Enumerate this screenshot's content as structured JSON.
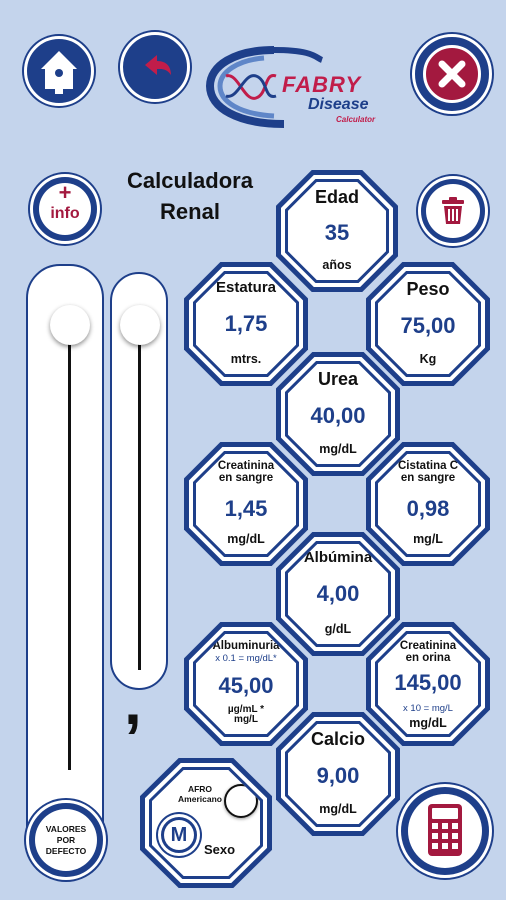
{
  "header": {
    "logo_text_1": "FABRY",
    "logo_text_2": "Disease",
    "logo_text_3": "Calculator"
  },
  "title": {
    "line1": "Calculadora",
    "line2": "Renal"
  },
  "info_button": {
    "plus": "+",
    "label": "info"
  },
  "comma_label": ",",
  "defaults_button": {
    "label": "VALORES POR DEFECTO"
  },
  "sex": {
    "afro_label": "AFRO Americano",
    "selected": "M",
    "label": "Sexo"
  },
  "fields": {
    "edad": {
      "label": "Edad",
      "value": "35",
      "unit": "años"
    },
    "estatura": {
      "label": "Estatura",
      "value": "1,75",
      "unit": "mtrs."
    },
    "peso": {
      "label": "Peso",
      "value": "75,00",
      "unit": "Kg"
    },
    "urea": {
      "label": "Urea",
      "value": "40,00",
      "unit": "mg/dL"
    },
    "creat_sangre": {
      "label": "Creatinina en sangre",
      "value": "1,45",
      "unit": "mg/dL"
    },
    "cistatina": {
      "label": "Cistatina C en sangre",
      "value": "0,98",
      "unit": "mg/L"
    },
    "albumina": {
      "label": "Albúmina",
      "value": "4,00",
      "unit": "g/dL"
    },
    "albuminuria": {
      "label": "Albuminuria",
      "sub": "x 0.1 = mg/dL*",
      "value": "45,00",
      "unit": "µg/mL * mg/L"
    },
    "creat_orina": {
      "label": "Creatinina en orina",
      "sub": "x 10 = mg/L",
      "value": "145,00",
      "unit": "mg/dL"
    },
    "calcio": {
      "label": "Calcio",
      "value": "9,00",
      "unit": "mg/dL"
    }
  },
  "colors": {
    "primary": "#1e3f8a",
    "danger": "#a3193f",
    "background": "#c4d4ec"
  }
}
